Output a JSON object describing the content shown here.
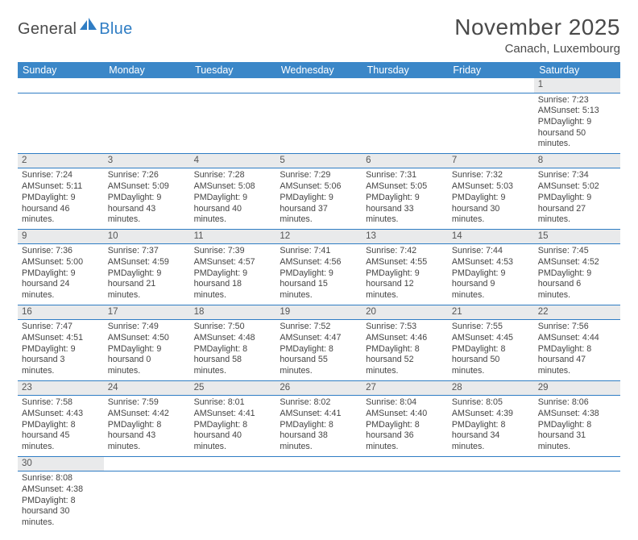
{
  "logo": {
    "text1": "General",
    "text2": "Blue"
  },
  "title": "November 2025",
  "subtitle": "Canach, Luxembourg",
  "colors": {
    "header_bg": "#3b87c8",
    "header_text": "#ffffff",
    "daynum_bg": "#e9eaeb",
    "rule": "#2f7dc4",
    "logo_blue": "#2f7dc4",
    "text": "#444444"
  },
  "day_headers": [
    "Sunday",
    "Monday",
    "Tuesday",
    "Wednesday",
    "Thursday",
    "Friday",
    "Saturday"
  ],
  "weeks": [
    {
      "nums": [
        "",
        "",
        "",
        "",
        "",
        "",
        "1"
      ],
      "cells": [
        null,
        null,
        null,
        null,
        null,
        null,
        {
          "sunrise": "Sunrise: 7:23 AM",
          "sunset": "Sunset: 5:13 PM",
          "day1": "Daylight: 9 hours",
          "day2": "and 50 minutes."
        }
      ]
    },
    {
      "nums": [
        "2",
        "3",
        "4",
        "5",
        "6",
        "7",
        "8"
      ],
      "cells": [
        {
          "sunrise": "Sunrise: 7:24 AM",
          "sunset": "Sunset: 5:11 PM",
          "day1": "Daylight: 9 hours",
          "day2": "and 46 minutes."
        },
        {
          "sunrise": "Sunrise: 7:26 AM",
          "sunset": "Sunset: 5:09 PM",
          "day1": "Daylight: 9 hours",
          "day2": "and 43 minutes."
        },
        {
          "sunrise": "Sunrise: 7:28 AM",
          "sunset": "Sunset: 5:08 PM",
          "day1": "Daylight: 9 hours",
          "day2": "and 40 minutes."
        },
        {
          "sunrise": "Sunrise: 7:29 AM",
          "sunset": "Sunset: 5:06 PM",
          "day1": "Daylight: 9 hours",
          "day2": "and 37 minutes."
        },
        {
          "sunrise": "Sunrise: 7:31 AM",
          "sunset": "Sunset: 5:05 PM",
          "day1": "Daylight: 9 hours",
          "day2": "and 33 minutes."
        },
        {
          "sunrise": "Sunrise: 7:32 AM",
          "sunset": "Sunset: 5:03 PM",
          "day1": "Daylight: 9 hours",
          "day2": "and 30 minutes."
        },
        {
          "sunrise": "Sunrise: 7:34 AM",
          "sunset": "Sunset: 5:02 PM",
          "day1": "Daylight: 9 hours",
          "day2": "and 27 minutes."
        }
      ]
    },
    {
      "nums": [
        "9",
        "10",
        "11",
        "12",
        "13",
        "14",
        "15"
      ],
      "cells": [
        {
          "sunrise": "Sunrise: 7:36 AM",
          "sunset": "Sunset: 5:00 PM",
          "day1": "Daylight: 9 hours",
          "day2": "and 24 minutes."
        },
        {
          "sunrise": "Sunrise: 7:37 AM",
          "sunset": "Sunset: 4:59 PM",
          "day1": "Daylight: 9 hours",
          "day2": "and 21 minutes."
        },
        {
          "sunrise": "Sunrise: 7:39 AM",
          "sunset": "Sunset: 4:57 PM",
          "day1": "Daylight: 9 hours",
          "day2": "and 18 minutes."
        },
        {
          "sunrise": "Sunrise: 7:41 AM",
          "sunset": "Sunset: 4:56 PM",
          "day1": "Daylight: 9 hours",
          "day2": "and 15 minutes."
        },
        {
          "sunrise": "Sunrise: 7:42 AM",
          "sunset": "Sunset: 4:55 PM",
          "day1": "Daylight: 9 hours",
          "day2": "and 12 minutes."
        },
        {
          "sunrise": "Sunrise: 7:44 AM",
          "sunset": "Sunset: 4:53 PM",
          "day1": "Daylight: 9 hours",
          "day2": "and 9 minutes."
        },
        {
          "sunrise": "Sunrise: 7:45 AM",
          "sunset": "Sunset: 4:52 PM",
          "day1": "Daylight: 9 hours",
          "day2": "and 6 minutes."
        }
      ]
    },
    {
      "nums": [
        "16",
        "17",
        "18",
        "19",
        "20",
        "21",
        "22"
      ],
      "cells": [
        {
          "sunrise": "Sunrise: 7:47 AM",
          "sunset": "Sunset: 4:51 PM",
          "day1": "Daylight: 9 hours",
          "day2": "and 3 minutes."
        },
        {
          "sunrise": "Sunrise: 7:49 AM",
          "sunset": "Sunset: 4:50 PM",
          "day1": "Daylight: 9 hours",
          "day2": "and 0 minutes."
        },
        {
          "sunrise": "Sunrise: 7:50 AM",
          "sunset": "Sunset: 4:48 PM",
          "day1": "Daylight: 8 hours",
          "day2": "and 58 minutes."
        },
        {
          "sunrise": "Sunrise: 7:52 AM",
          "sunset": "Sunset: 4:47 PM",
          "day1": "Daylight: 8 hours",
          "day2": "and 55 minutes."
        },
        {
          "sunrise": "Sunrise: 7:53 AM",
          "sunset": "Sunset: 4:46 PM",
          "day1": "Daylight: 8 hours",
          "day2": "and 52 minutes."
        },
        {
          "sunrise": "Sunrise: 7:55 AM",
          "sunset": "Sunset: 4:45 PM",
          "day1": "Daylight: 8 hours",
          "day2": "and 50 minutes."
        },
        {
          "sunrise": "Sunrise: 7:56 AM",
          "sunset": "Sunset: 4:44 PM",
          "day1": "Daylight: 8 hours",
          "day2": "and 47 minutes."
        }
      ]
    },
    {
      "nums": [
        "23",
        "24",
        "25",
        "26",
        "27",
        "28",
        "29"
      ],
      "cells": [
        {
          "sunrise": "Sunrise: 7:58 AM",
          "sunset": "Sunset: 4:43 PM",
          "day1": "Daylight: 8 hours",
          "day2": "and 45 minutes."
        },
        {
          "sunrise": "Sunrise: 7:59 AM",
          "sunset": "Sunset: 4:42 PM",
          "day1": "Daylight: 8 hours",
          "day2": "and 43 minutes."
        },
        {
          "sunrise": "Sunrise: 8:01 AM",
          "sunset": "Sunset: 4:41 PM",
          "day1": "Daylight: 8 hours",
          "day2": "and 40 minutes."
        },
        {
          "sunrise": "Sunrise: 8:02 AM",
          "sunset": "Sunset: 4:41 PM",
          "day1": "Daylight: 8 hours",
          "day2": "and 38 minutes."
        },
        {
          "sunrise": "Sunrise: 8:04 AM",
          "sunset": "Sunset: 4:40 PM",
          "day1": "Daylight: 8 hours",
          "day2": "and 36 minutes."
        },
        {
          "sunrise": "Sunrise: 8:05 AM",
          "sunset": "Sunset: 4:39 PM",
          "day1": "Daylight: 8 hours",
          "day2": "and 34 minutes."
        },
        {
          "sunrise": "Sunrise: 8:06 AM",
          "sunset": "Sunset: 4:38 PM",
          "day1": "Daylight: 8 hours",
          "day2": "and 31 minutes."
        }
      ]
    },
    {
      "nums": [
        "30",
        "",
        "",
        "",
        "",
        "",
        ""
      ],
      "cells": [
        {
          "sunrise": "Sunrise: 8:08 AM",
          "sunset": "Sunset: 4:38 PM",
          "day1": "Daylight: 8 hours",
          "day2": "and 30 minutes."
        },
        null,
        null,
        null,
        null,
        null,
        null
      ]
    }
  ]
}
